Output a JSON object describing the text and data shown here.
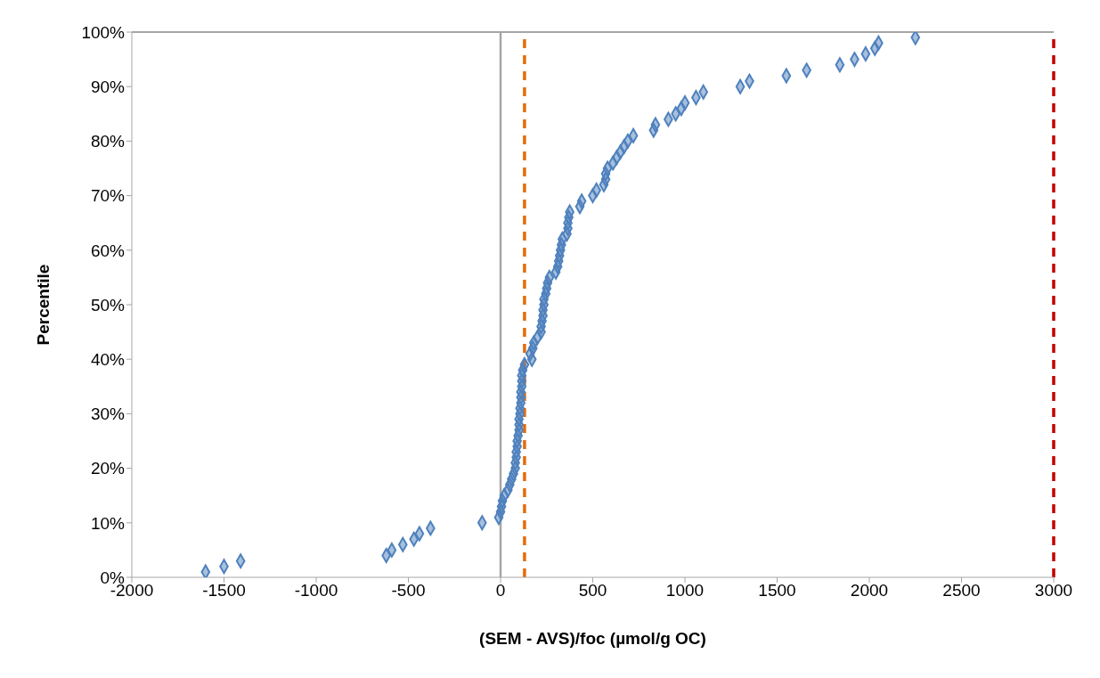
{
  "chart_data": {
    "type": "scatter",
    "xlabel": "(SEM - AVS)/foc (µmol/g OC)",
    "ylabel": "Percentile",
    "x": [
      -1600,
      -1500,
      -1410,
      -620,
      -590,
      -530,
      -470,
      -440,
      -380,
      -100,
      -10,
      0,
      5,
      10,
      20,
      40,
      50,
      60,
      70,
      80,
      80,
      85,
      85,
      90,
      90,
      95,
      100,
      100,
      100,
      105,
      105,
      110,
      110,
      110,
      115,
      115,
      115,
      120,
      130,
      170,
      160,
      175,
      180,
      200,
      220,
      220,
      225,
      230,
      230,
      235,
      235,
      245,
      250,
      255,
      265,
      300,
      310,
      315,
      320,
      325,
      330,
      335,
      360,
      365,
      365,
      370,
      375,
      430,
      440,
      500,
      520,
      560,
      570,
      570,
      580,
      610,
      630,
      650,
      670,
      690,
      720,
      830,
      840,
      910,
      950,
      980,
      1000,
      1060,
      1100,
      1300,
      1350,
      1550,
      1660,
      1840,
      1920,
      1980,
      2030,
      2050,
      2250
    ],
    "series": [
      {
        "color": "#4f81bd",
        "values": [
          1,
          2,
          3,
          4,
          5,
          6,
          7,
          8,
          9,
          10,
          11,
          12,
          13,
          14,
          15,
          16,
          17,
          18,
          19,
          20,
          21,
          22,
          23,
          24,
          25,
          26,
          27,
          28,
          29,
          30,
          31,
          32,
          33,
          34,
          35,
          36,
          37,
          38,
          39,
          40,
          41,
          42,
          43,
          44,
          45,
          46,
          47,
          48,
          49,
          50,
          51,
          52,
          53,
          54,
          55,
          56,
          57,
          58,
          59,
          60,
          61,
          62,
          63,
          64,
          65,
          66,
          67,
          68,
          69,
          70,
          71,
          72,
          73,
          74,
          75,
          76,
          77,
          78,
          79,
          80,
          81,
          82,
          83,
          84,
          85,
          86,
          87,
          88,
          89,
          90,
          91,
          92,
          93,
          94,
          95,
          96,
          97,
          98,
          99
        ]
      }
    ],
    "xlim": [
      -2000,
      3000
    ],
    "xticks": [
      -2000,
      -1500,
      -1000,
      -500,
      0,
      500,
      1000,
      1500,
      2000,
      2500,
      3000
    ],
    "ylim": [
      0,
      100
    ],
    "yticks": [
      {
        "value": 0,
        "label": "0%"
      },
      {
        "value": 10,
        "label": "10%"
      },
      {
        "value": 20,
        "label": "20%"
      },
      {
        "value": 30,
        "label": "30%"
      },
      {
        "value": 40,
        "label": "40%"
      },
      {
        "value": 50,
        "label": "50%"
      },
      {
        "value": 60,
        "label": "60%"
      },
      {
        "value": 70,
        "label": "70%"
      },
      {
        "value": 80,
        "label": "80%"
      },
      {
        "value": 90,
        "label": "90%"
      },
      {
        "value": 100,
        "label": "100%"
      }
    ],
    "ref_lines": [
      {
        "axis": "x",
        "value": 0,
        "color": "#a6a6a6",
        "line_style": "solid"
      },
      {
        "axis": "x",
        "value": 130,
        "color": "#e46c0a",
        "line_style": "dashed"
      },
      {
        "axis": "x",
        "value": 3000,
        "color": "#c00000",
        "line_style": "dashed"
      }
    ],
    "marker": "diamond",
    "grid": false,
    "legend": false
  }
}
